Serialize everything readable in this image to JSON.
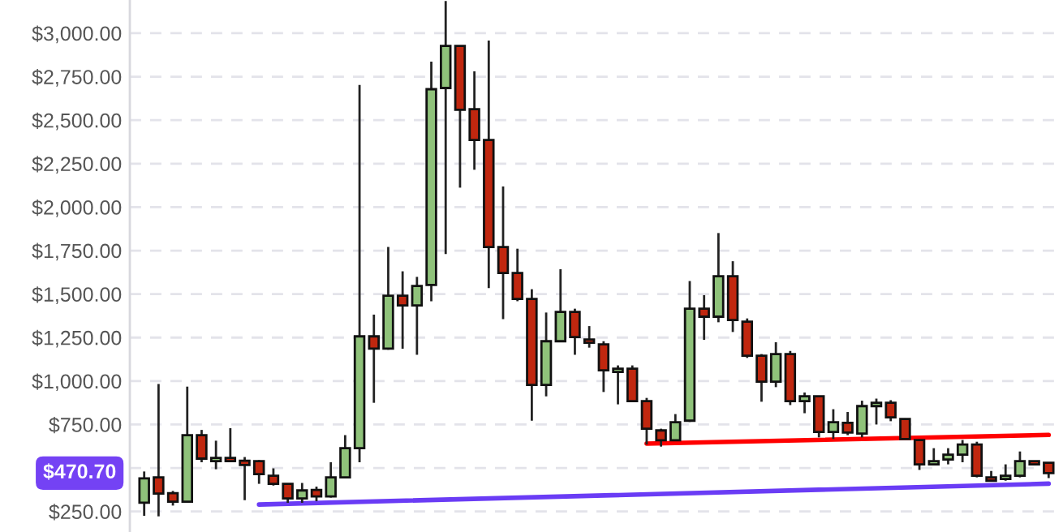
{
  "chart_data": {
    "type": "candlestick",
    "categories": [
      null,
      null,
      null,
      null,
      null,
      null,
      null,
      null,
      null,
      null,
      null,
      null,
      null,
      null,
      null,
      null,
      null,
      null,
      null,
      null,
      null,
      null,
      null,
      null,
      null,
      null,
      null,
      null,
      null,
      null,
      null,
      null,
      null,
      null,
      null,
      null,
      null,
      null,
      null,
      null,
      null,
      null,
      null,
      null,
      null,
      null,
      null,
      null,
      null,
      null,
      null,
      null,
      null,
      null,
      null,
      null,
      null,
      null,
      null,
      null,
      null,
      null,
      null,
      null
    ],
    "ohlc": [
      [
        300,
        480,
        225,
        440
      ],
      [
        446,
        983,
        222,
        353
      ],
      [
        355,
        368,
        284,
        306
      ],
      [
        306,
        968,
        300,
        689
      ],
      [
        689,
        719,
        533,
        554
      ],
      [
        539,
        657,
        493,
        558
      ],
      [
        558,
        729,
        539,
        539
      ],
      [
        542,
        563,
        315,
        517
      ],
      [
        539,
        545,
        409,
        465
      ],
      [
        455,
        498,
        399,
        409
      ],
      [
        409,
        412,
        300,
        325
      ],
      [
        325,
        414,
        300,
        371
      ],
      [
        374,
        393,
        309,
        337
      ],
      [
        337,
        533,
        330,
        446
      ],
      [
        446,
        689,
        440,
        614
      ],
      [
        614,
        2703,
        533,
        1257
      ],
      [
        1257,
        1382,
        875,
        1186
      ],
      [
        1186,
        1771,
        1180,
        1491
      ],
      [
        1491,
        1631,
        1186,
        1435
      ],
      [
        1435,
        1599,
        1151,
        1547
      ],
      [
        1552,
        2837,
        1459,
        2678
      ],
      [
        2685,
        3185,
        1730,
        2927
      ],
      [
        2927,
        2930,
        2112,
        2560
      ],
      [
        2563,
        2781,
        2215,
        2386
      ],
      [
        2386,
        2958,
        1534,
        1771
      ],
      [
        1771,
        2119,
        1356,
        1621
      ],
      [
        1621,
        1761,
        1459,
        1472
      ],
      [
        1472,
        1528,
        772,
        978
      ],
      [
        978,
        1394,
        912,
        1229
      ],
      [
        1229,
        1643,
        1225,
        1397
      ],
      [
        1397,
        1416,
        1151,
        1253
      ],
      [
        1239,
        1316,
        1192,
        1220
      ],
      [
        1211,
        1229,
        937,
        1062
      ],
      [
        1052,
        1090,
        866,
        1071
      ],
      [
        1071,
        1090,
        880,
        884
      ],
      [
        884,
        903,
        635,
        726
      ],
      [
        716,
        726,
        623,
        660
      ],
      [
        660,
        810,
        655,
        763
      ],
      [
        772,
        1575,
        765,
        1416
      ],
      [
        1416,
        1494,
        1237,
        1370
      ],
      [
        1370,
        1851,
        1338,
        1603
      ],
      [
        1603,
        1689,
        1282,
        1351
      ],
      [
        1341,
        1360,
        1133,
        1146
      ],
      [
        1146,
        1155,
        881,
        996
      ],
      [
        996,
        1223,
        965,
        1155
      ],
      [
        1155,
        1173,
        862,
        884
      ],
      [
        884,
        934,
        815,
        912
      ],
      [
        912,
        915,
        676,
        707
      ],
      [
        707,
        838,
        667,
        763
      ],
      [
        760,
        822,
        689,
        704
      ],
      [
        698,
        887,
        676,
        856
      ],
      [
        856,
        899,
        750,
        875
      ],
      [
        875,
        890,
        769,
        791
      ],
      [
        782,
        785,
        667,
        667
      ],
      [
        661,
        665,
        489,
        521
      ],
      [
        521,
        614,
        521,
        539
      ],
      [
        549,
        614,
        521,
        577
      ],
      [
        577,
        661,
        533,
        635
      ],
      [
        635,
        651,
        446,
        455
      ],
      [
        446,
        483,
        427,
        427
      ],
      [
        437,
        521,
        427,
        455
      ],
      [
        455,
        595,
        446,
        539
      ],
      [
        539,
        539,
        521,
        521
      ],
      [
        530,
        530,
        442,
        470.7
      ]
    ],
    "colors": [
      "#8fc27a",
      "#c0270f",
      "#c0270f",
      "#8fc27a",
      "#c0270f",
      "#8fc27a",
      "#c0270f",
      "#c0270f",
      "#c0270f",
      "#c0270f",
      "#c0270f",
      "#8fc27a",
      "#c0270f",
      "#8fc27a",
      "#8fc27a",
      "#8fc27a",
      "#c0270f",
      "#8fc27a",
      "#c0270f",
      "#8fc27a",
      "#8fc27a",
      "#8fc27a",
      "#c0270f",
      "#c0270f",
      "#c0270f",
      "#c0270f",
      "#c0270f",
      "#c0270f",
      "#8fc27a",
      "#8fc27a",
      "#c0270f",
      "#c0270f",
      "#c0270f",
      "#8fc27a",
      "#c0270f",
      "#c0270f",
      "#c0270f",
      "#8fc27a",
      "#8fc27a",
      "#c0270f",
      "#8fc27a",
      "#c0270f",
      "#c0270f",
      "#c0270f",
      "#8fc27a",
      "#c0270f",
      "#8fc27a",
      "#c0270f",
      "#8fc27a",
      "#c0270f",
      "#8fc27a",
      "#8fc27a",
      "#c0270f",
      "#c0270f",
      "#c0270f",
      "#8fc27a",
      "#8fc27a",
      "#8fc27a",
      "#c0270f",
      "#c0270f",
      "#8fc27a",
      "#8fc27a",
      "#c0270f",
      "#c0270f"
    ],
    "series": [
      {
        "type": "line",
        "values": [
          null,
          null,
          null,
          null,
          null,
          null,
          null,
          null,
          null,
          null,
          null,
          null,
          null,
          null,
          null,
          null,
          null,
          null,
          null,
          null,
          null,
          null,
          null,
          null,
          null,
          null,
          null,
          null,
          null,
          null,
          null,
          null,
          null,
          null,
          null,
          640,
          null,
          null,
          null,
          null,
          null,
          null,
          null,
          null,
          null,
          null,
          null,
          null,
          null,
          null,
          null,
          null,
          null,
          null,
          null,
          null,
          null,
          null,
          null,
          null,
          null,
          null,
          null,
          690
        ],
        "color": "#ff0000"
      },
      {
        "type": "line",
        "values": [
          null,
          null,
          null,
          null,
          null,
          null,
          null,
          null,
          290,
          null,
          null,
          null,
          null,
          null,
          null,
          null,
          null,
          null,
          null,
          null,
          null,
          null,
          null,
          null,
          null,
          null,
          null,
          null,
          null,
          null,
          null,
          null,
          null,
          null,
          null,
          null,
          null,
          null,
          null,
          null,
          null,
          null,
          null,
          null,
          null,
          null,
          null,
          null,
          null,
          null,
          null,
          null,
          null,
          null,
          null,
          null,
          null,
          null,
          null,
          null,
          null,
          null,
          null,
          410
        ],
        "color": "#6a3cf5"
      }
    ],
    "yticks": [
      {
        "value": 250,
        "label": "$250.00"
      },
      {
        "value": 500,
        "label": null
      },
      {
        "value": 750,
        "label": "$750.00"
      },
      {
        "value": 1000,
        "label": "$1,000.00"
      },
      {
        "value": 1250,
        "label": "$1,250.00"
      },
      {
        "value": 1500,
        "label": "$1,500.00"
      },
      {
        "value": 1750,
        "label": "$1,750.00"
      },
      {
        "value": 2000,
        "label": "$2,000.00"
      },
      {
        "value": 2250,
        "label": "$2,250.00"
      },
      {
        "value": 2500,
        "label": "$2,500.00"
      },
      {
        "value": 2750,
        "label": "$2,750.00"
      },
      {
        "value": 3000,
        "label": "$3,000.00"
      }
    ],
    "ylim": [
      132,
      3191
    ],
    "tick_labels": "y",
    "grid": "y",
    "annotations": [
      "$470.70"
    ]
  }
}
